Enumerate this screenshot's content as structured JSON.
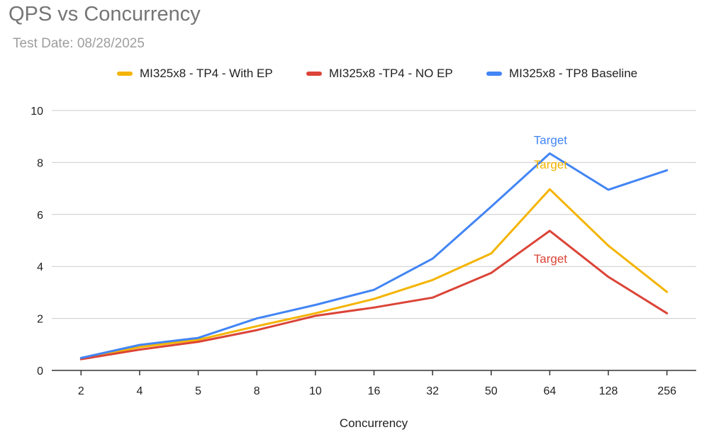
{
  "header": {
    "title": "QPS vs Concurrency",
    "subtitle": "Test Date: 08/28/2025"
  },
  "chart_data": {
    "type": "line",
    "title": "QPS vs Concurrency",
    "subtitle": "Test Date: 08/28/2025",
    "xlabel": "Concurrency",
    "ylabel": "",
    "categories": [
      "2",
      "4",
      "5",
      "8",
      "10",
      "16",
      "32",
      "50",
      "64",
      "128",
      "256"
    ],
    "ylim": [
      0,
      10
    ],
    "yticks": [
      "0",
      "2",
      "4",
      "6",
      "8",
      "10"
    ],
    "grid": true,
    "legend_position": "top",
    "series": [
      {
        "name": "MI325x8 - TP4 - With EP",
        "color": "#f4b400",
        "values": [
          0.45,
          0.9,
          1.18,
          1.7,
          2.2,
          2.75,
          3.48,
          4.5,
          6.97,
          4.8,
          3.02
        ]
      },
      {
        "name": "MI325x8 -TP4 - NO EP",
        "color": "#db4437",
        "values": [
          0.43,
          0.8,
          1.1,
          1.55,
          2.1,
          2.42,
          2.8,
          3.75,
          5.37,
          3.6,
          2.2
        ]
      },
      {
        "name": "MI325x8 - TP8 Baseline",
        "color": "#4285f4",
        "values": [
          0.48,
          0.98,
          1.25,
          2.0,
          2.52,
          3.1,
          4.3,
          6.3,
          8.35,
          6.95,
          7.7
        ]
      }
    ],
    "annotations": [
      {
        "text": "Target",
        "series": 0,
        "color": "#f4b400"
      },
      {
        "text": "Target",
        "series": 2,
        "color": "#4285f4"
      },
      {
        "text": "Target",
        "series": 1,
        "color": "#db4437"
      }
    ]
  }
}
